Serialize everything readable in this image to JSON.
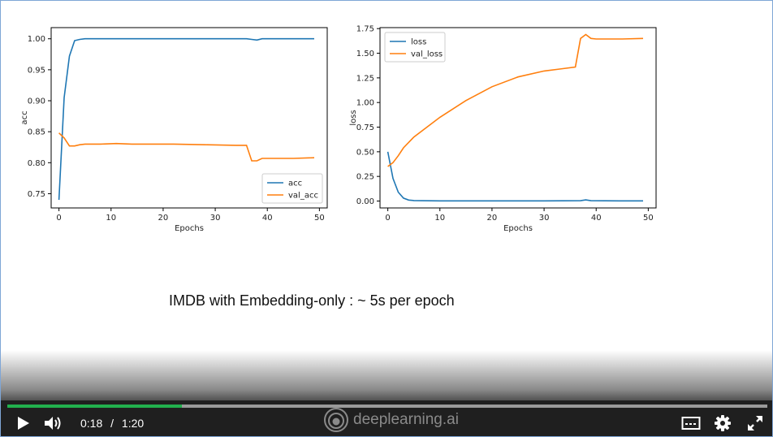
{
  "caption": "IMDB with Embedding-only : ~ 5s per epoch",
  "player": {
    "time_current": "0:18",
    "time_separator": "/",
    "time_total": "1:20",
    "progress_fraction": 0.23,
    "brand": "deeplearning.ai",
    "accent": "#22b04d",
    "icons": [
      "play-icon",
      "volume-icon",
      "captions-icon",
      "settings-gear-icon",
      "fullscreen-icon"
    ]
  },
  "chart_data": [
    {
      "type": "line",
      "xlabel": "Epochs",
      "ylabel": "acc",
      "xlim": [
        -1.5,
        51.5
      ],
      "ylim": [
        0.727,
        1.018
      ],
      "xticks": [
        0,
        10,
        20,
        30,
        40,
        50
      ],
      "yticks": [
        0.75,
        0.8,
        0.85,
        0.9,
        0.95,
        1.0
      ],
      "ytick_labels": [
        "0.75",
        "0.80",
        "0.85",
        "0.90",
        "0.95",
        "1.00"
      ],
      "legend_position": "lower-right",
      "series": [
        {
          "name": "acc",
          "color": "#1f77b4",
          "x": [
            0,
            1,
            2,
            3,
            4,
            5,
            10,
            20,
            30,
            36,
            37,
            38,
            39,
            40,
            45,
            49
          ],
          "y": [
            0.74,
            0.905,
            0.972,
            0.997,
            0.999,
            1.0,
            1.0,
            1.0,
            1.0,
            1.0,
            0.999,
            0.998,
            1.0,
            1.0,
            1.0,
            1.0
          ]
        },
        {
          "name": "val_acc",
          "color": "#ff7f0e",
          "x": [
            0,
            1,
            2,
            3,
            4,
            5,
            8,
            11,
            14,
            20,
            22,
            28,
            34,
            36,
            37,
            38,
            39,
            45,
            49
          ],
          "y": [
            0.848,
            0.84,
            0.827,
            0.827,
            0.829,
            0.83,
            0.83,
            0.831,
            0.83,
            0.83,
            0.83,
            0.829,
            0.828,
            0.828,
            0.803,
            0.803,
            0.807,
            0.807,
            0.808
          ]
        }
      ]
    },
    {
      "type": "line",
      "xlabel": "Epochs",
      "ylabel": "loss",
      "xlim": [
        -1.5,
        51.5
      ],
      "ylim": [
        -0.07,
        1.76
      ],
      "xticks": [
        0,
        10,
        20,
        30,
        40,
        50
      ],
      "yticks": [
        0.0,
        0.25,
        0.5,
        0.75,
        1.0,
        1.25,
        1.5,
        1.75
      ],
      "ytick_labels": [
        "0.00",
        "0.25",
        "0.50",
        "0.75",
        "1.00",
        "1.25",
        "1.50",
        "1.75"
      ],
      "legend_position": "upper-left",
      "series": [
        {
          "name": "loss",
          "color": "#1f77b4",
          "x": [
            0,
            1,
            2,
            3,
            4,
            5,
            10,
            20,
            30,
            37,
            38,
            39,
            45,
            49
          ],
          "y": [
            0.5,
            0.23,
            0.09,
            0.03,
            0.01,
            0.005,
            0.002,
            0.002,
            0.002,
            0.003,
            0.012,
            0.003,
            0.002,
            0.002
          ]
        },
        {
          "name": "val_loss",
          "color": "#ff7f0e",
          "x": [
            0,
            1,
            2,
            3,
            5,
            10,
            15,
            20,
            25,
            30,
            33,
            36,
            37,
            38,
            39,
            40,
            45,
            49
          ],
          "y": [
            0.35,
            0.39,
            0.46,
            0.54,
            0.65,
            0.85,
            1.02,
            1.16,
            1.26,
            1.32,
            1.34,
            1.36,
            1.65,
            1.69,
            1.65,
            1.645,
            1.645,
            1.65
          ]
        }
      ]
    }
  ]
}
